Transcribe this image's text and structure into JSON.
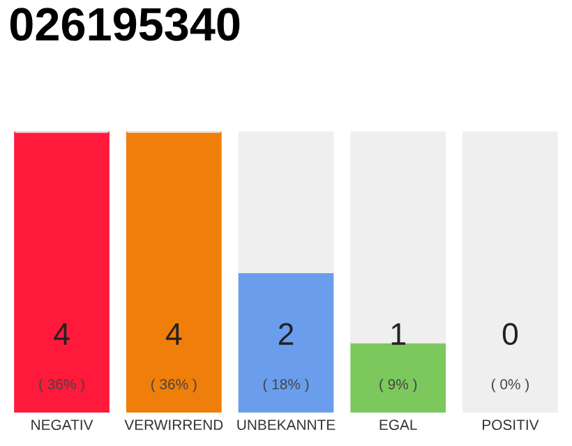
{
  "chart_data": {
    "type": "bar",
    "title": "026195340",
    "stacked": true,
    "categories": [
      "NEGATIV",
      "VERWIRREND",
      "UNBEKANNTE",
      "EGAL",
      "POSITIV"
    ],
    "series": [
      {
        "colors": [
          "#ff1a3c",
          "#f07e0a",
          "#6a9eec",
          "#7cc85c",
          "#2ea043"
        ],
        "values": [
          4,
          4,
          2,
          1,
          0
        ],
        "value_labels": [
          "4",
          "4",
          "2",
          "1",
          "0"
        ]
      },
      {
        "color": "#efefef",
        "values": [
          0,
          0,
          2,
          3,
          4
        ]
      }
    ],
    "ylim": [
      0,
      4
    ],
    "tick_labels": "x",
    "grid": false,
    "legend": false,
    "annotations": [
      {
        "text": "( 36% )",
        "x": "NEGATIV",
        "y": 0
      },
      {
        "text": "( 36% )",
        "x": "VERWIRREND",
        "y": 0
      },
      {
        "text": "( 18% )",
        "x": "UNBEKANNTE",
        "y": 0
      },
      {
        "text": "( 9% )",
        "x": "EGAL",
        "y": 0
      },
      {
        "text": "( 0% )",
        "x": "POSITIV",
        "y": 0
      }
    ]
  }
}
